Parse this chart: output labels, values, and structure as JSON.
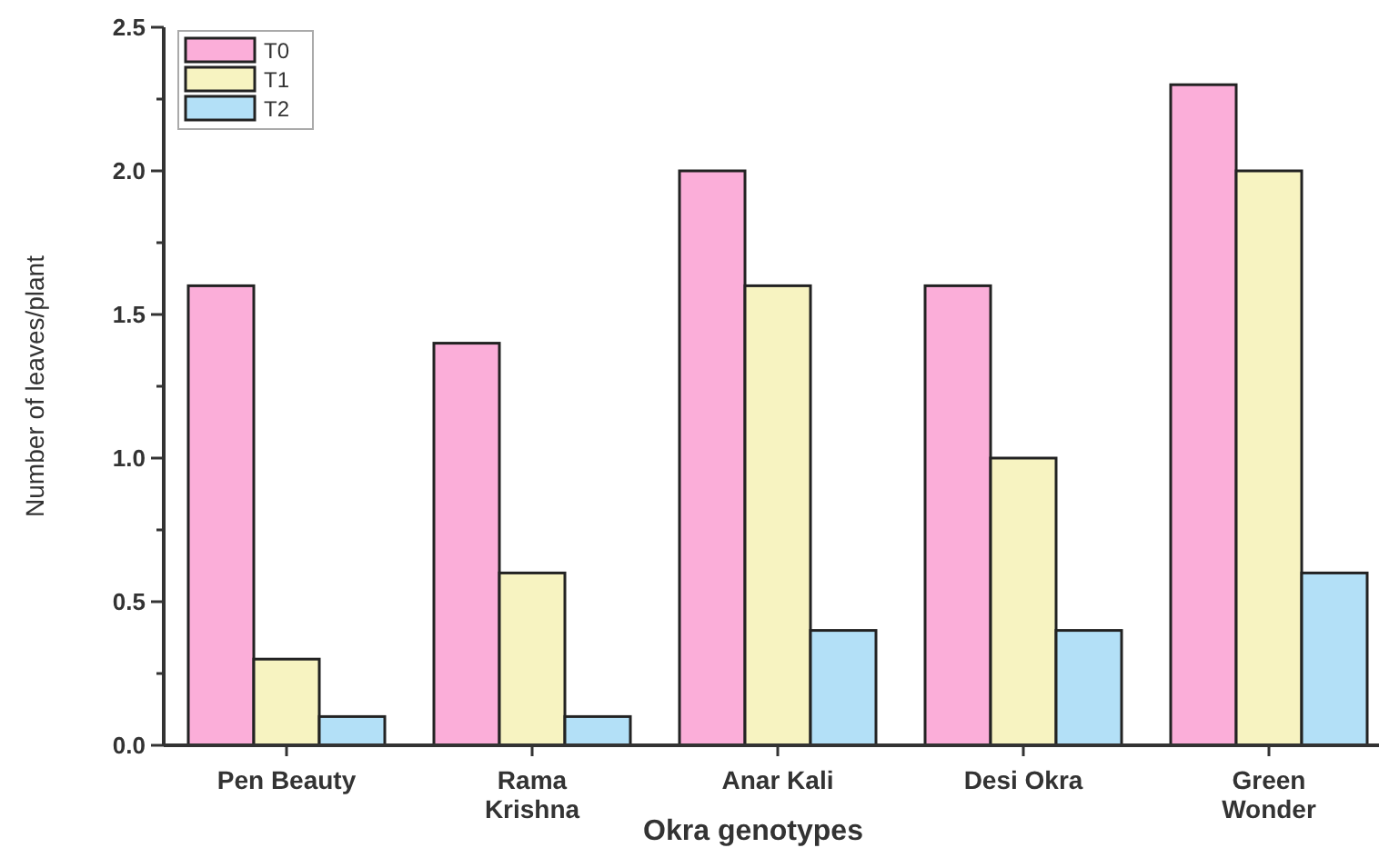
{
  "chart_data": {
    "type": "bar",
    "xlabel": "Okra genotypes",
    "ylabel": "Number of leaves/plant",
    "categories": [
      "Pen Beauty",
      "Rama Krishna",
      "Anar Kali",
      "Desi Okra",
      "Green Wonder"
    ],
    "series": [
      {
        "name": "T0",
        "color": "#fbaed9",
        "values": [
          1.6,
          1.4,
          2.0,
          1.6,
          2.3
        ]
      },
      {
        "name": "T1",
        "color": "#f7f3c1",
        "values": [
          0.3,
          0.6,
          1.6,
          1.0,
          2.0
        ]
      },
      {
        "name": "T2",
        "color": "#b3e0f7",
        "values": [
          0.1,
          0.1,
          0.4,
          0.4,
          0.6
        ]
      }
    ],
    "ylim": [
      0,
      2.5
    ],
    "yticks": [
      {
        "value": 0,
        "label": "0.0"
      },
      {
        "value": 0.25,
        "label": null
      },
      0.5,
      {
        "value": 0.75,
        "label": null
      },
      {
        "value": 1,
        "label": "1.0"
      },
      {
        "value": 1.25,
        "label": null
      },
      1.5,
      {
        "value": 1.75,
        "label": null
      },
      {
        "value": 2,
        "label": "2.0"
      },
      {
        "value": 2.25,
        "label": null
      },
      2.5
    ],
    "legend": "top left",
    "grid": false
  }
}
